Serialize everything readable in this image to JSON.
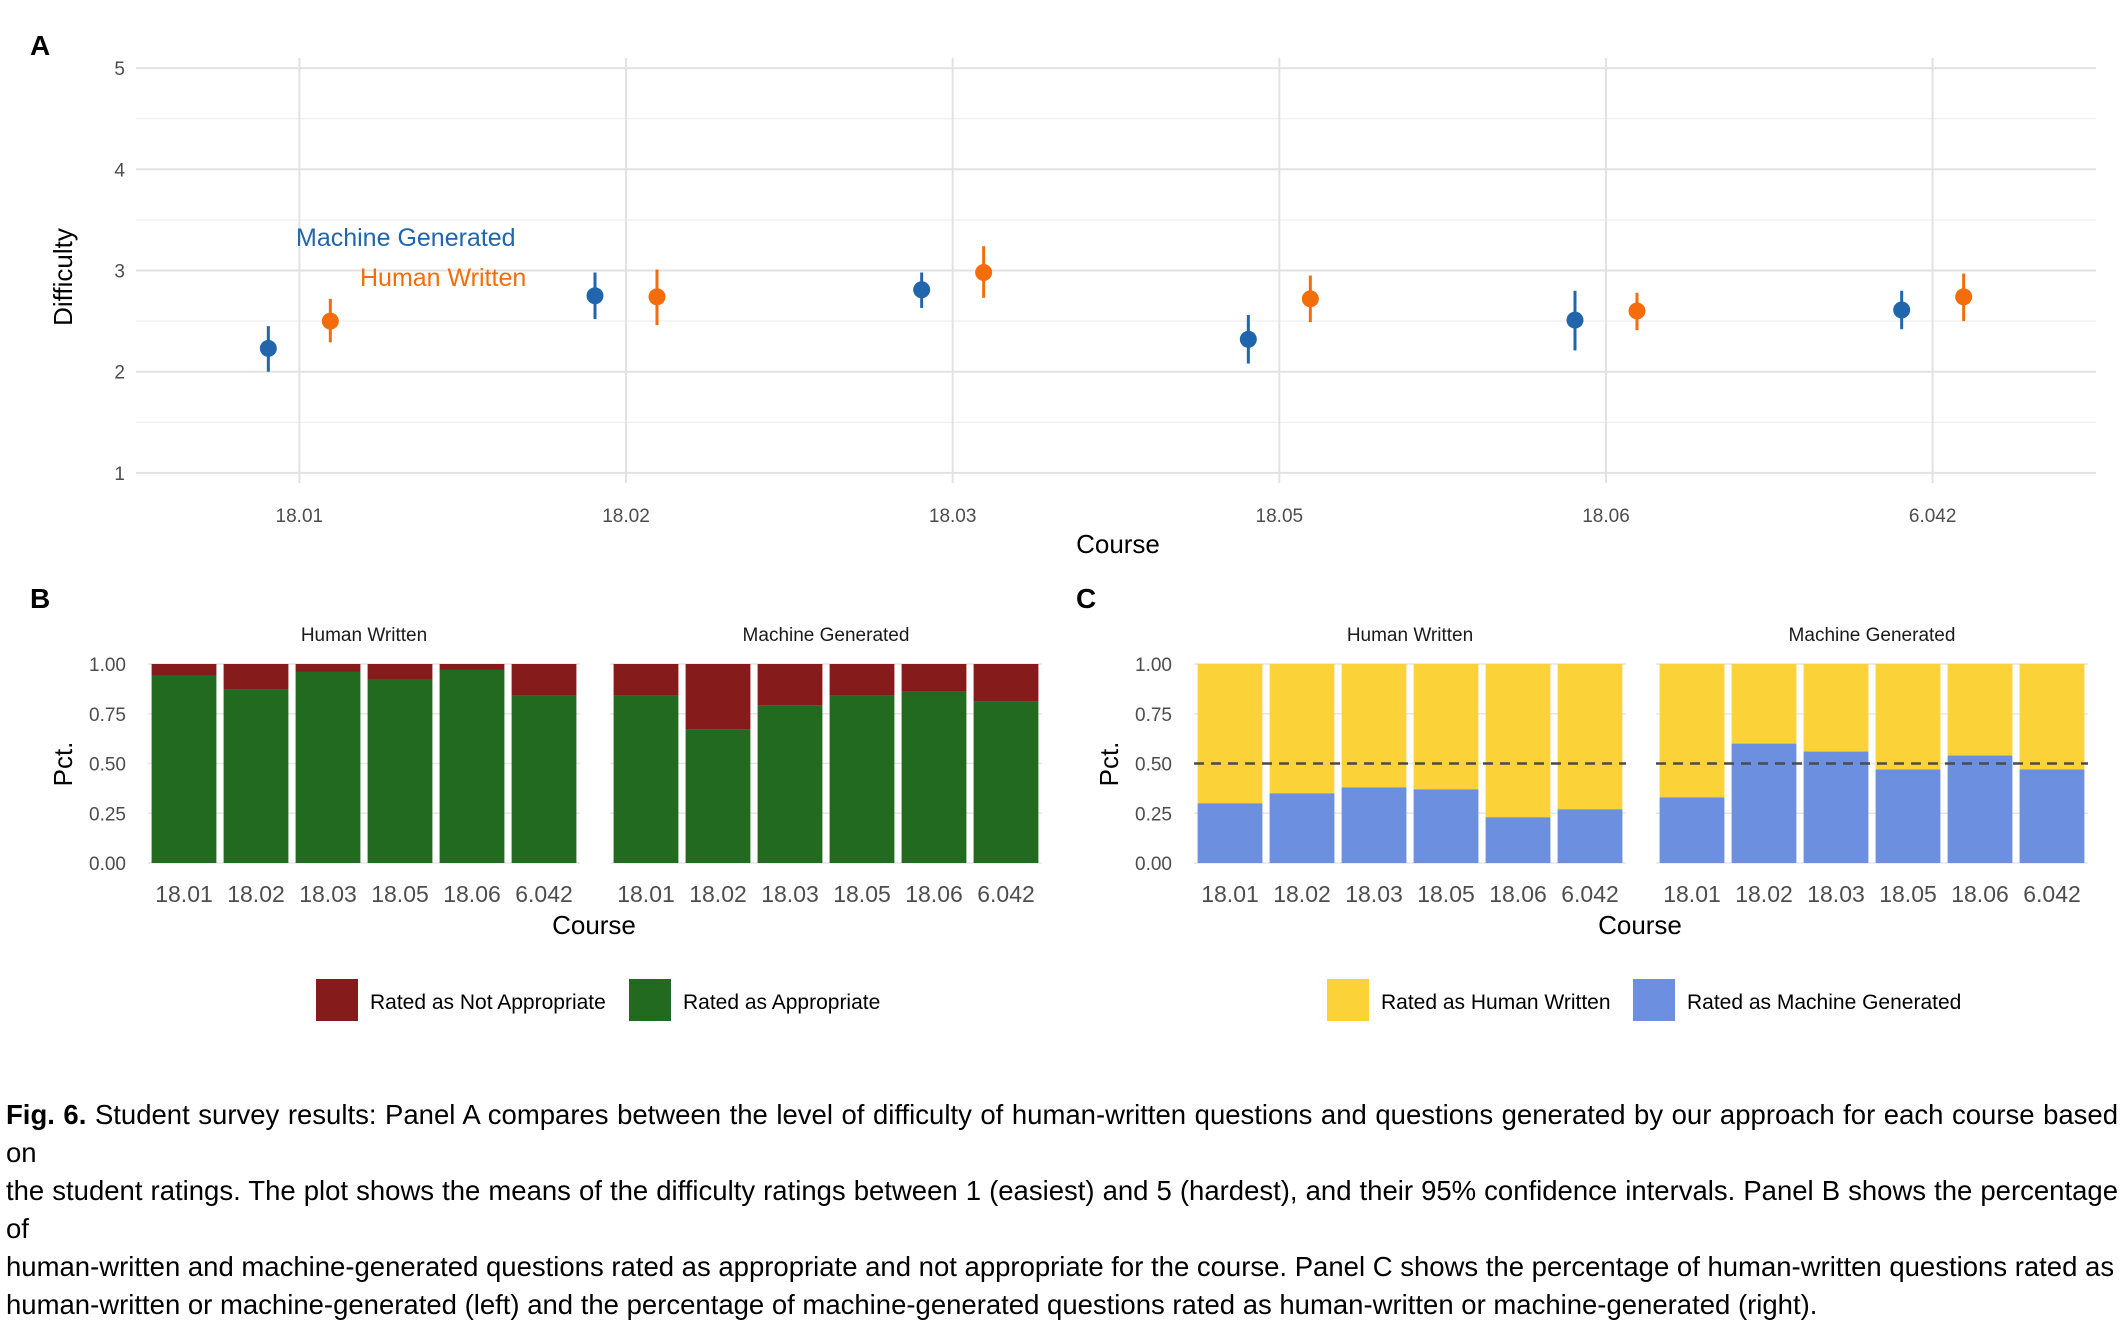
{
  "panels": {
    "a": "A",
    "b": "B",
    "c": "C"
  },
  "chart_data": [
    {
      "panel": "A",
      "type": "scatter",
      "xlabel": "Course",
      "ylabel": "Difficulty",
      "categories": [
        "18.01",
        "18.02",
        "18.03",
        "18.05",
        "18.06",
        "6.042"
      ],
      "ylim": [
        0.9,
        5.1
      ],
      "yticks": [
        "1",
        "2",
        "3",
        "4",
        "5"
      ],
      "grid": true,
      "series": [
        {
          "name": "Machine Generated",
          "color": "#2166AC",
          "values": [
            2.23,
            2.75,
            2.81,
            2.32,
            2.51,
            2.61
          ],
          "ci_low": [
            2.0,
            2.52,
            2.63,
            2.08,
            2.21,
            2.42
          ],
          "ci_high": [
            2.45,
            2.98,
            2.98,
            2.56,
            2.8,
            2.8
          ]
        },
        {
          "name": "Human Written",
          "color": "#F46D0A",
          "values": [
            2.5,
            2.74,
            2.98,
            2.72,
            2.6,
            2.74
          ],
          "ci_low": [
            2.29,
            2.46,
            2.73,
            2.49,
            2.41,
            2.5
          ],
          "ci_high": [
            2.72,
            3.01,
            3.24,
            2.95,
            2.78,
            2.97
          ]
        }
      ]
    },
    {
      "panel": "B",
      "type": "bar",
      "stacked": true,
      "xlabel": "Course",
      "ylabel": "Pct.",
      "ylim": [
        0,
        1
      ],
      "yticks": [
        "0.00",
        "0.25",
        "0.50",
        "0.75",
        "1.00"
      ],
      "facets": [
        {
          "name": "Human Written",
          "categories": [
            "18.01",
            "18.02",
            "18.03",
            "18.05",
            "18.06",
            "6.042"
          ],
          "appropriate": [
            0.94,
            0.87,
            0.96,
            0.92,
            0.97,
            0.84
          ]
        },
        {
          "name": "Machine Generated",
          "categories": [
            "18.01",
            "18.02",
            "18.03",
            "18.05",
            "18.06",
            "6.042"
          ],
          "appropriate": [
            0.84,
            0.67,
            0.79,
            0.84,
            0.86,
            0.81
          ]
        }
      ],
      "legend": [
        {
          "label": "Rated as Not Appropriate",
          "color": "#861B1B"
        },
        {
          "label": "Rated as Appropriate",
          "color": "#226A1F"
        }
      ]
    },
    {
      "panel": "C",
      "type": "bar",
      "stacked": true,
      "xlabel": "Course",
      "ylabel": "Pct.",
      "ylim": [
        0,
        1
      ],
      "yticks": [
        "0.00",
        "0.25",
        "0.50",
        "0.75",
        "1.00"
      ],
      "reference_line": 0.5,
      "facets": [
        {
          "name": "Human Written",
          "categories": [
            "18.01",
            "18.02",
            "18.03",
            "18.05",
            "18.06",
            "6.042"
          ],
          "machine_generated": [
            0.3,
            0.35,
            0.38,
            0.37,
            0.23,
            0.27
          ]
        },
        {
          "name": "Machine Generated",
          "categories": [
            "18.01",
            "18.02",
            "18.03",
            "18.05",
            "18.06",
            "6.042"
          ],
          "machine_generated": [
            0.33,
            0.6,
            0.56,
            0.47,
            0.54,
            0.47
          ]
        }
      ],
      "legend": [
        {
          "label": "Rated as Human Written",
          "color": "#FBD338"
        },
        {
          "label": "Rated as Machine Generated",
          "color": "#6D8FE0"
        }
      ]
    }
  ],
  "caption": {
    "label": "Fig. 6.",
    "line1": "Student survey results: Panel A compares between the level of difficulty of human-written questions and questions generated by our approach for each course based on",
    "line2": "the student ratings. The plot shows the means of the difficulty ratings between 1 (easiest) and 5 (hardest), and their 95% confidence intervals. Panel B shows the percentage of",
    "line3": "human-written and machine-generated questions rated as appropriate and not appropriate for the course. Panel C shows the percentage of human-written questions rated as",
    "line4": "human-written or machine-generated (left) and the percentage of machine-generated questions rated as human-written or machine-generated (right)."
  }
}
